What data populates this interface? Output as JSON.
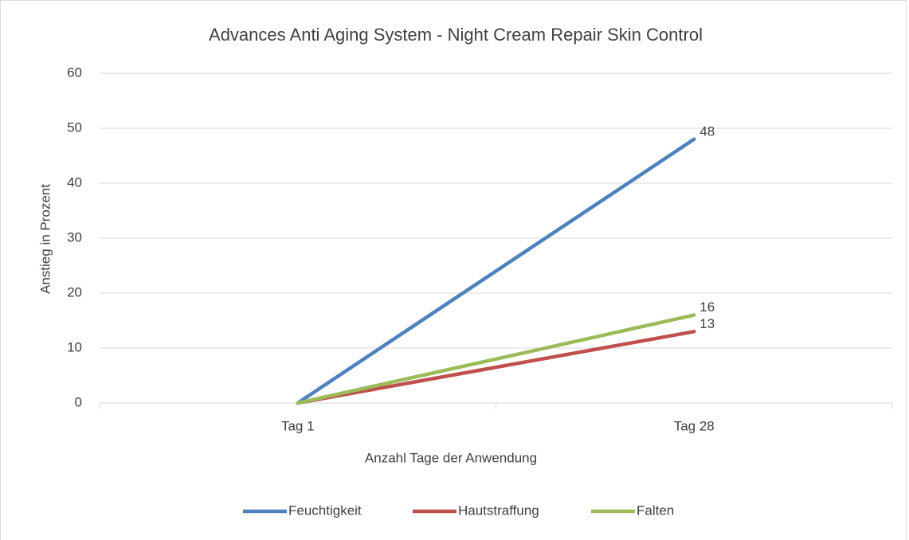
{
  "chart_data": {
    "type": "line",
    "title": "Advances Anti Aging System - Night Cream Repair Skin Control",
    "xlabel": "Anzahl Tage der Anwendung",
    "ylabel": "Anstieg in  Prozent",
    "categories": [
      "Tag 1",
      "Tag 28"
    ],
    "series": [
      {
        "name": "Feuchtigkeit",
        "color": "#4f81bd",
        "values": [
          0,
          48
        ]
      },
      {
        "name": "Hautstraffung",
        "color": "#c0504d",
        "values": [
          0,
          13
        ]
      },
      {
        "name": "Falten",
        "color": "#9bbb59",
        "values": [
          0,
          16
        ]
      }
    ],
    "ylim": [
      0,
      60
    ],
    "yticks": [
      0,
      10,
      20,
      30,
      40,
      50,
      60
    ],
    "grid": true,
    "legend": "bottom"
  }
}
